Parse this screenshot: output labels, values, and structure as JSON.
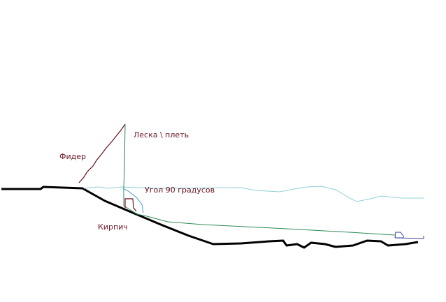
{
  "labels": {
    "feeder": "Фидер",
    "line": "Леска \\ плеть",
    "angle": "Угол 90 градусов",
    "brick": "Кирпич"
  },
  "colors": {
    "bottom": "#000000",
    "water_surface": "#8fd0d8",
    "feeder_rod": "#6b0f1a",
    "fishing_line": "#2e8b57",
    "line_curve": "#3a9fc8",
    "brick": "#6b0f1a",
    "sinker": "#3a3f9a",
    "label_text": "#6b1424"
  }
}
